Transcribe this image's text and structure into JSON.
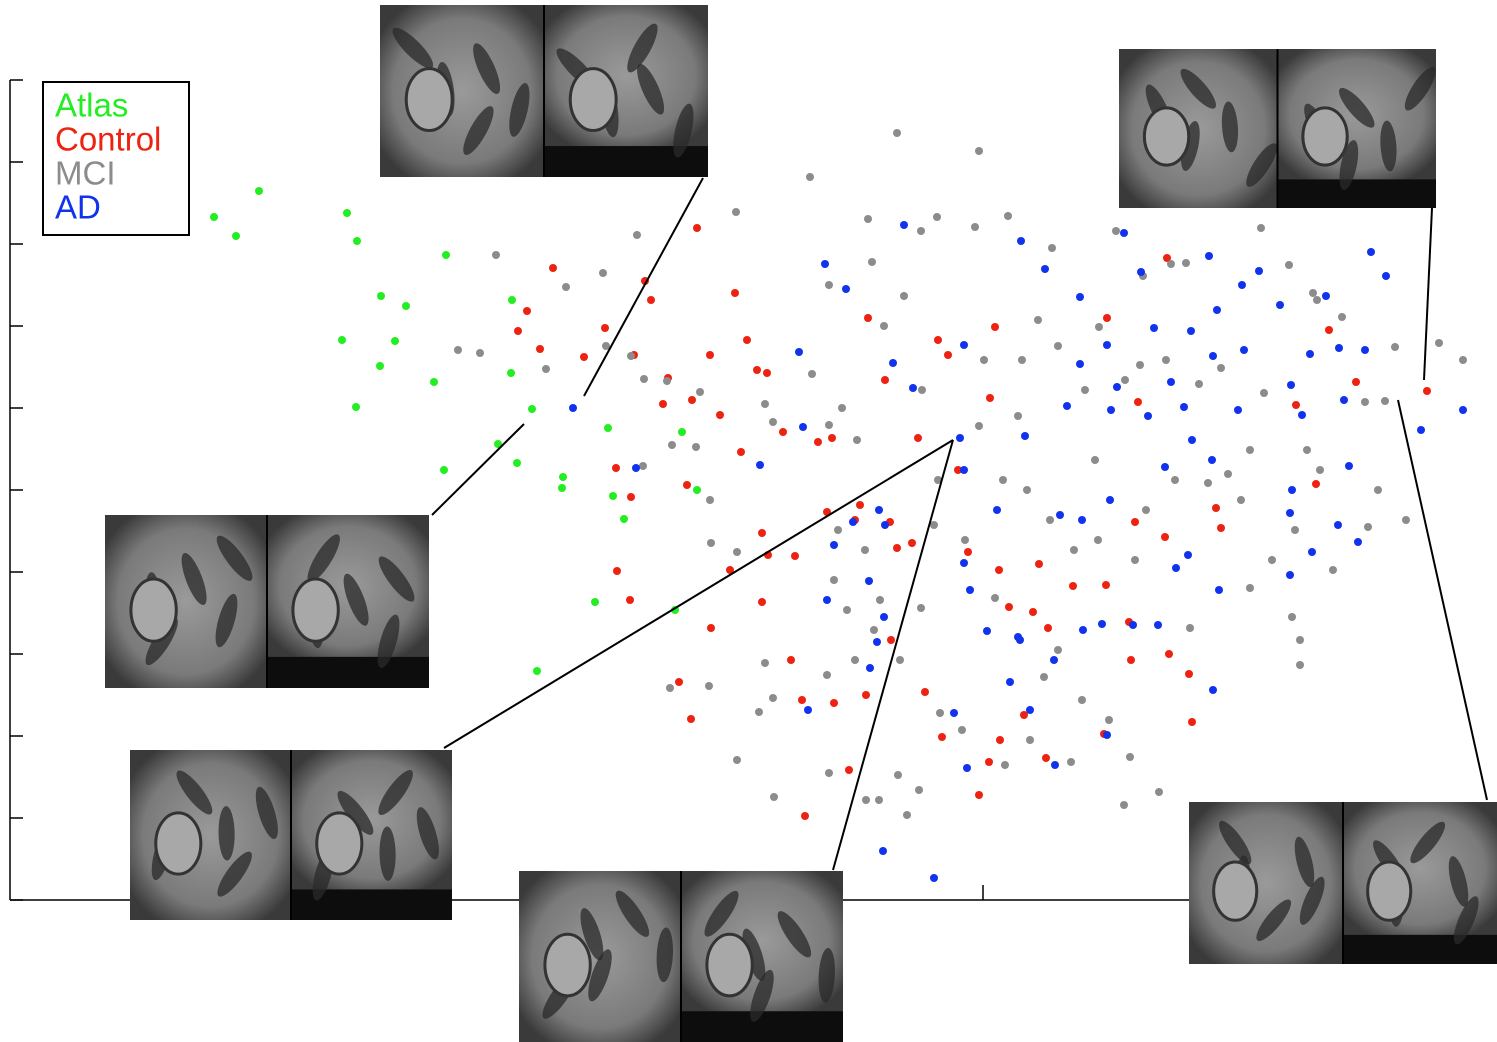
{
  "chart_data": {
    "type": "scatter",
    "xlim": [
      0,
      1487
    ],
    "ylim": [
      0,
      820
    ],
    "xticks": [
      973
    ],
    "yticks": [
      0,
      82,
      164,
      246,
      328,
      410,
      492,
      574,
      656,
      738,
      820
    ],
    "legend": "upper left",
    "series": [
      {
        "name": "Atlas",
        "color": "#22ee22",
        "x": [
          249,
          204,
          226,
          337,
          347,
          436,
          371,
          396,
          332,
          385,
          370,
          424,
          346,
          501,
          502,
          522,
          488,
          507,
          434,
          553,
          552,
          598,
          603,
          614,
          672,
          687,
          585,
          665,
          527
        ],
        "values": [
          709,
          683,
          664,
          687,
          659,
          645,
          604,
          594,
          560,
          559,
          534,
          518,
          493,
          527,
          600,
          491,
          456,
          437,
          430,
          423,
          412,
          472,
          404,
          381,
          468,
          410,
          298,
          290,
          229
        ]
      },
      {
        "name": "Control",
        "color": "#ee2211",
        "x": [
          543,
          517,
          508,
          530,
          574,
          595,
          635,
          687,
          725,
          641,
          624,
          658,
          653,
          682,
          710,
          700,
          737,
          757,
          747,
          731,
          773,
          808,
          822,
          752,
          720,
          758,
          785,
          817,
          845,
          850,
          880,
          887,
          902,
          928,
          938,
          985,
          1097,
          1157,
          1128,
          1125,
          1155,
          1206,
          1211,
          1306,
          1319,
          1286,
          1346,
          1417,
          858,
          875,
          908,
          980,
          948,
          958,
          989,
          999,
          1023,
          1029,
          1063,
          1096,
          1119,
          1121,
          1179,
          1182,
          1159,
          1094,
          1038,
          1014,
          990,
          979,
          1036,
          969,
          932,
          915,
          881,
          856,
          824,
          792,
          781,
          752,
          701,
          669,
          681,
          795,
          839,
          606,
          621,
          677,
          607,
          620
        ],
        "values": [
          632,
          589,
          569,
          551,
          543,
          572,
          619,
          672,
          607,
          600,
          545,
          522,
          496,
          500,
          485,
          545,
          560,
          527,
          530,
          448,
          468,
          458,
          462,
          367,
          330,
          345,
          344,
          388,
          380,
          395,
          378,
          352,
          357,
          560,
          545,
          573,
          582,
          642,
          498,
          378,
          363,
          392,
          372,
          416,
          570,
          495,
          518,
          509,
          582,
          520,
          462,
          502,
          430,
          348,
          330,
          293,
          288,
          336,
          314,
          315,
          278,
          240,
          226,
          178,
          246,
          166,
          272,
          185,
          160,
          138,
          142,
          105,
          163,
          208,
          260,
          205,
          197,
          200,
          240,
          298,
          272,
          218,
          181,
          84,
          130,
          432,
          403,
          415,
          329,
          300
        ]
      },
      {
        "name": "MCI",
        "color": "#8c8c8c",
        "x": [
          887,
          969,
          800,
          726,
          858,
          927,
          911,
          965,
          998,
          1042,
          1106,
          1133,
          1161,
          1176,
          1251,
          1279,
          1303,
          486,
          593,
          627,
          556,
          448,
          470,
          536,
          596,
          621,
          634,
          657,
          690,
          662,
          686,
          633,
          701,
          727,
          700,
          755,
          763,
          802,
          819,
          832,
          847,
          874,
          894,
          862,
          819,
          912,
          974,
          1012,
          1028,
          1048,
          1089,
          1130,
          1189,
          1211,
          1254,
          1307,
          1332,
          1375,
          1429,
          1453,
          1385,
          1355,
          1368,
          1396,
          1358,
          1323,
          1290,
          1290,
          1282,
          1231,
          1218,
          1198,
          1136,
          1125,
          1088,
          1064,
          1040,
          1017,
          993,
          1008,
          969,
          928,
          924,
          911,
          890,
          864,
          837,
          824,
          828,
          855,
          870,
          955,
          985,
          1048,
          1072,
          1099,
          1120,
          1114,
          1149,
          1061,
          1034,
          1020,
          995,
          952,
          930,
          909,
          888,
          869,
          897,
          856,
          819,
          764,
          727,
          749,
          763,
          755,
          699,
          660,
          817,
          845,
          1180,
          1240,
          1262,
          1165,
          1085,
          1075,
          1115,
          1156,
          1240,
          1297,
          1310,
          1285
        ],
        "values": [
          767,
          749,
          723,
          688,
          681,
          683,
          669,
          673,
          684,
          652,
          669,
          624,
          636,
          637,
          672,
          635,
          607,
          645,
          627,
          665,
          613,
          550,
          547,
          531,
          554,
          544,
          521,
          519,
          508,
          455,
          453,
          434,
          357,
          348,
          400,
          496,
          478,
          526,
          475,
          492,
          460,
          574,
          604,
          638,
          615,
          510,
          540,
          540,
          580,
          554,
          573,
          535,
          516,
          532,
          507,
          600,
          583,
          499,
          557,
          540,
          553,
          498,
          410,
          380,
          373,
          330,
          260,
          235,
          283,
          400,
          426,
          417,
          390,
          340,
          360,
          350,
          380,
          410,
          420,
          484,
          474,
          420,
          375,
          292,
          240,
          270,
          290,
          320,
          370,
          350,
          300,
          360,
          302,
          250,
          200,
          180,
          143,
          95,
          108,
          138,
          223,
          160,
          135,
          170,
          187,
          110,
          125,
          100,
          85,
          100,
          127,
          103,
          140,
          188,
          202,
          237,
          214,
          212,
          225,
          240,
          272,
          312,
          340,
          420,
          440,
          510,
          520,
          540,
          450,
          450,
          430,
          370
        ]
      },
      {
        "name": "AD",
        "color": "#1133ee",
        "x": [
          563,
          894,
          1011,
          1114,
          1131,
          1199,
          1249,
          1361,
          1376,
          815,
          836,
          1035,
          1070,
          1144,
          1181,
          1207,
          1232,
          1270,
          1316,
          1329,
          1355,
          1300,
          1234,
          1203,
          1097,
          1070,
          1107,
          1161,
          1174,
          1228,
          1281,
          1292,
          1334,
          1411,
          1453,
          789,
          883,
          903,
          954,
          950,
          1015,
          1057,
          1101,
          1138,
          1182,
          1202,
          1155,
          1100,
          1050,
          1072,
          987,
          954,
          869,
          875,
          843,
          824,
          793,
          750,
          626,
          859,
          867,
          874,
          817,
          860,
          798,
          954,
          960,
          977,
          1008,
          1044,
          1073,
          1092,
          1148,
          1166,
          1178,
          1209,
          1203,
          1280,
          1302,
          1280,
          1328,
          1348,
          1282,
          1339,
          1000,
          1020,
          944,
          957,
          1045,
          1097,
          873,
          924,
          1010,
          1123
        ],
        "values": [
          492,
          675,
          659,
          667,
          628,
          644,
          629,
          648,
          624,
          636,
          611,
          631,
          603,
          572,
          569,
          590,
          615,
          595,
          604,
          552,
          550,
          546,
          550,
          544,
          555,
          536,
          513,
          518,
          493,
          490,
          515,
          485,
          500,
          470,
          490,
          548,
          537,
          512,
          555,
          462,
          464,
          494,
          490,
          484,
          460,
          440,
          433,
          400,
          385,
          380,
          390,
          430,
          390,
          375,
          378,
          355,
          473,
          435,
          432,
          319,
          258,
          283,
          300,
          232,
          190,
          337,
          310,
          269,
          263,
          240,
          270,
          276,
          275,
          332,
          345,
          310,
          210,
          325,
          348,
          387,
          375,
          358,
          410,
          434,
          218,
          190,
          187,
          132,
          135,
          165,
          49,
          22,
          260,
          275
        ]
      }
    ]
  }
}
